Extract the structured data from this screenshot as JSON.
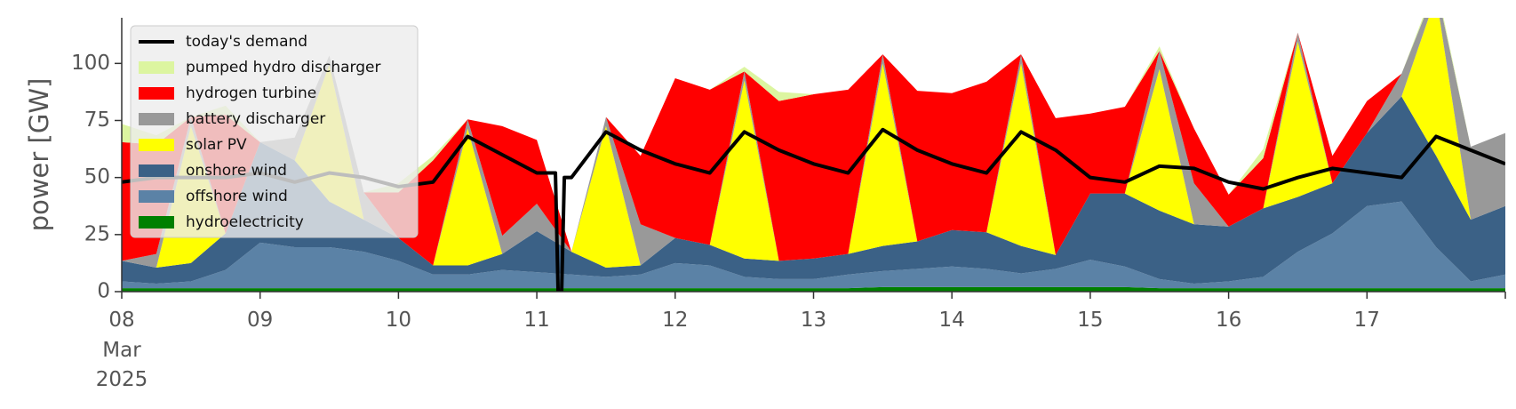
{
  "chart_data": {
    "type": "area",
    "xlabel": "",
    "ylabel": "power [GW]",
    "ylim": [
      0,
      120
    ],
    "xlim": [
      "2025-03-08",
      "2025-03-18"
    ],
    "yticks": [
      0,
      25,
      50,
      75,
      100
    ],
    "xticks": [
      {
        "date": "2025-03-08",
        "label": "08"
      },
      {
        "date": "2025-03-09",
        "label": "09"
      },
      {
        "date": "2025-03-10",
        "label": "10"
      },
      {
        "date": "2025-03-11",
        "label": "11"
      },
      {
        "date": "2025-03-12",
        "label": "12"
      },
      {
        "date": "2025-03-13",
        "label": "13"
      },
      {
        "date": "2025-03-14",
        "label": "14"
      },
      {
        "date": "2025-03-15",
        "label": "15"
      },
      {
        "date": "2025-03-16",
        "label": "16"
      },
      {
        "date": "2025-03-17",
        "label": "17"
      },
      {
        "date": "2025-03-18",
        "label": ""
      }
    ],
    "first_tick_sublabels": [
      "Mar",
      "2025"
    ],
    "grid": false,
    "legend_position": "top-left",
    "x": [
      "03-08 00:00",
      "03-08 06:00",
      "03-08 12:00",
      "03-08 18:00",
      "03-09 00:00",
      "03-09 06:00",
      "03-09 12:00",
      "03-09 18:00",
      "03-10 00:00",
      "03-10 06:00",
      "03-10 12:00",
      "03-10 18:00",
      "03-11 00:00",
      "03-11 06:00",
      "03-11 12:00",
      "03-11 18:00",
      "03-12 00:00",
      "03-12 06:00",
      "03-12 12:00",
      "03-12 18:00",
      "03-13 00:00",
      "03-13 06:00",
      "03-13 12:00",
      "03-13 18:00",
      "03-14 00:00",
      "03-14 06:00",
      "03-14 12:00",
      "03-14 18:00",
      "03-15 00:00",
      "03-15 06:00",
      "03-15 12:00",
      "03-15 18:00",
      "03-16 00:00",
      "03-16 06:00",
      "03-16 12:00",
      "03-16 18:00",
      "03-17 00:00",
      "03-17 06:00",
      "03-17 12:00",
      "03-17 18:00",
      "03-18 00:00"
    ],
    "series": [
      {
        "name": "hydroelectricity",
        "color": "#008000",
        "values": [
          1.5,
          1.5,
          1.5,
          1.5,
          1.5,
          1.5,
          1.5,
          1.5,
          1.5,
          1.5,
          1.5,
          1.5,
          1.5,
          1.5,
          1.5,
          1.5,
          1.5,
          1.5,
          1.5,
          1.5,
          1.5,
          1.5,
          2,
          2,
          2,
          2,
          2,
          2,
          2,
          2,
          1.5,
          1.5,
          1.5,
          1.5,
          1.5,
          1.5,
          1.5,
          1.5,
          1.5,
          1.5,
          1.5
        ]
      },
      {
        "name": "offshore wind",
        "color": "#5b82a6",
        "values": [
          3,
          2,
          3,
          8,
          20,
          18,
          18,
          16,
          12,
          6,
          6,
          8,
          7,
          6,
          5,
          6,
          11,
          10,
          5,
          4,
          4,
          6,
          7,
          8,
          9,
          8,
          6,
          8,
          12,
          9,
          4,
          2,
          3,
          5,
          16,
          24,
          36,
          38,
          18,
          3,
          6
        ]
      },
      {
        "name": "onshore wind",
        "color": "#3b6186",
        "values": [
          9,
          7,
          8,
          16,
          44,
          38,
          20,
          14,
          10,
          4,
          4,
          7,
          18,
          10,
          4,
          4,
          11,
          9,
          8,
          8,
          9,
          9,
          11,
          12,
          16,
          16,
          12,
          6,
          29,
          32,
          30,
          26,
          24,
          30,
          24,
          22,
          32,
          46,
          40,
          27,
          30
        ]
      },
      {
        "name": "solar PV",
        "color": "#ffff00",
        "values": [
          0,
          0,
          60,
          0,
          0,
          0,
          60,
          0,
          0,
          0,
          60,
          0,
          0,
          0,
          62,
          0,
          0,
          0,
          78,
          0,
          0,
          0,
          80,
          0,
          0,
          0,
          80,
          0,
          0,
          0,
          62,
          0,
          0,
          0,
          68,
          0,
          0,
          0,
          70,
          0,
          0
        ]
      },
      {
        "name": "battery discharger",
        "color": "#999999",
        "values": [
          0,
          6,
          4,
          0,
          0,
          10,
          4,
          12,
          0,
          0,
          4,
          8,
          12,
          0,
          4,
          18,
          0,
          0,
          4,
          0,
          0,
          0,
          4,
          0,
          0,
          0,
          4,
          0,
          0,
          0,
          8,
          18,
          0,
          0,
          4,
          0,
          0,
          10,
          4,
          32,
          32
        ]
      },
      {
        "name": "hydrogen turbine",
        "color": "#ff0000",
        "values": [
          52,
          48,
          0,
          52,
          0,
          0,
          0,
          0,
          20,
          46,
          0,
          48,
          28,
          0,
          0,
          30,
          70,
          68,
          0,
          70,
          72,
          72,
          0,
          66,
          60,
          66,
          0,
          60,
          35,
          38,
          0,
          24,
          14,
          22,
          0,
          12,
          14,
          0,
          0,
          0,
          0
        ]
      },
      {
        "name": "pumped hydro discharger",
        "color": "#dcf5a0",
        "values": [
          8,
          4,
          0,
          4,
          0,
          0,
          0,
          0,
          4,
          2,
          0,
          0,
          0,
          0,
          0,
          0,
          0,
          0,
          2,
          4,
          0,
          0,
          0,
          0,
          0,
          0,
          0,
          0,
          0,
          0,
          2,
          0,
          0,
          4,
          0,
          0,
          0,
          0,
          2,
          0,
          0
        ]
      }
    ],
    "demand": {
      "name": "today's demand",
      "color": "#000000",
      "values": [
        48,
        50,
        50,
        50,
        52,
        48,
        52,
        50,
        46,
        48,
        68,
        60,
        52,
        50,
        70,
        62,
        56,
        52,
        70,
        62,
        56,
        52,
        71,
        62,
        56,
        52,
        70,
        62,
        50,
        48,
        55,
        54,
        48,
        45,
        50,
        54,
        52,
        50,
        68,
        62,
        56
      ]
    },
    "demand_dip": {
      "x": "03-11 04:00",
      "value": 0
    },
    "legend_order": [
      "today's demand",
      "pumped hydro discharger",
      "hydrogen turbine",
      "battery discharger",
      "solar PV",
      "onshore wind",
      "offshore wind",
      "hydroelectricity"
    ]
  }
}
